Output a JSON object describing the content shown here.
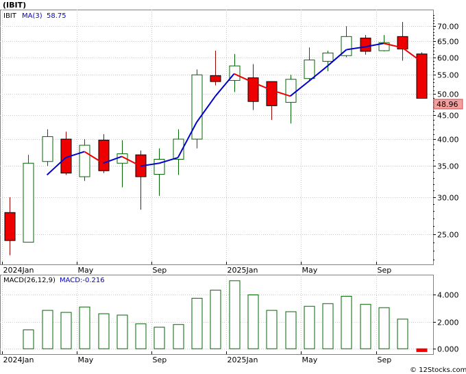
{
  "chart_data": [
    {
      "type": "candlestick",
      "title": "(IBIT)",
      "overlay_label": "MA(3)",
      "overlay_value": "58.75",
      "symbol_tag": "IBIT",
      "last_price_label": "48.96",
      "y_scale": "log",
      "ylim": [
        21.5,
        76
      ],
      "y_ticks": [
        25,
        30,
        35,
        40,
        45,
        50,
        55,
        60,
        65,
        70
      ],
      "y_tick_labels": [
        "25.00",
        "30.00",
        "35.00",
        "40.00",
        "45.00",
        "50.00",
        "55.00",
        "60.00",
        "65.00",
        "70.00"
      ],
      "x_tick_labels": [
        {
          "month": 0,
          "label": "2024Jan"
        },
        {
          "month": 4,
          "label": "May"
        },
        {
          "month": 8,
          "label": "Sep"
        },
        {
          "month": 12,
          "label": "2025Jan"
        },
        {
          "month": 16,
          "label": "May"
        },
        {
          "month": 20,
          "label": "Sep"
        }
      ],
      "months": [
        "2024-01",
        "2024-02",
        "2024-03",
        "2024-04",
        "2024-05",
        "2024-06",
        "2024-07",
        "2024-08",
        "2024-09",
        "2024-10",
        "2024-11",
        "2024-12",
        "2025-01",
        "2025-02",
        "2025-03",
        "2025-04",
        "2025-05",
        "2025-06",
        "2025-07",
        "2025-08",
        "2025-09",
        "2025-10",
        "2025-11"
      ],
      "candles": [
        {
          "o": 27.8,
          "h": 30.0,
          "l": 22.5,
          "c": 24.2
        },
        {
          "o": 24.0,
          "h": 37.0,
          "l": 24.0,
          "c": 35.5
        },
        {
          "o": 35.8,
          "h": 42.0,
          "l": 35.0,
          "c": 40.5
        },
        {
          "o": 40.0,
          "h": 41.5,
          "l": 33.5,
          "c": 33.8
        },
        {
          "o": 33.2,
          "h": 40.0,
          "l": 32.5,
          "c": 38.8
        },
        {
          "o": 39.8,
          "h": 41.0,
          "l": 33.8,
          "c": 34.2
        },
        {
          "o": 35.5,
          "h": 39.8,
          "l": 31.5,
          "c": 37.2
        },
        {
          "o": 37.0,
          "h": 37.8,
          "l": 28.2,
          "c": 33.2
        },
        {
          "o": 33.6,
          "h": 38.2,
          "l": 30.2,
          "c": 36.2
        },
        {
          "o": 36.2,
          "h": 42.0,
          "l": 33.5,
          "c": 40.0
        },
        {
          "o": 40.0,
          "h": 56.5,
          "l": 38.2,
          "c": 55.0
        },
        {
          "o": 54.8,
          "h": 62.0,
          "l": 52.2,
          "c": 53.2
        },
        {
          "o": 53.5,
          "h": 61.0,
          "l": 50.5,
          "c": 57.5
        },
        {
          "o": 54.2,
          "h": 58.0,
          "l": 46.2,
          "c": 48.2
        },
        {
          "o": 53.2,
          "h": 53.2,
          "l": 44.0,
          "c": 47.2
        },
        {
          "o": 48.0,
          "h": 55.0,
          "l": 43.2,
          "c": 53.8
        },
        {
          "o": 54.0,
          "h": 63.0,
          "l": 53.2,
          "c": 59.2
        },
        {
          "o": 58.8,
          "h": 62.0,
          "l": 56.0,
          "c": 61.3
        },
        {
          "o": 60.5,
          "h": 70.0,
          "l": 60.0,
          "c": 66.5
        },
        {
          "o": 66.0,
          "h": 67.0,
          "l": 60.8,
          "c": 61.8
        },
        {
          "o": 62.0,
          "h": 67.0,
          "l": 61.8,
          "c": 64.5
        },
        {
          "o": 66.5,
          "h": 71.5,
          "l": 59.0,
          "c": 62.5
        },
        {
          "o": 61.0,
          "h": 61.5,
          "l": 48.9,
          "c": 48.96
        }
      ],
      "ma": [
        null,
        null,
        33.5,
        36.5,
        37.6,
        35.5,
        36.7,
        35.0,
        35.5,
        36.5,
        43.5,
        49.5,
        55.3,
        53.0,
        51.0,
        49.5,
        53.3,
        57.5,
        62.3,
        63.2,
        64.3,
        62.9,
        58.75
      ],
      "colors": {
        "up_body": "#ffffff",
        "down_body": "#ee0000",
        "candle_outline": "#000000",
        "wick_up": "#006600",
        "wick_down": "#990000",
        "ma_up": "#0000cc",
        "ma_down": "#ee0000",
        "last_label_bg": "#f4a0a0",
        "grid": "#c8c8c8",
        "frame": "#808080"
      }
    },
    {
      "type": "bar",
      "title": "MACD(26,12,9)",
      "value_label": "MACD:-0.216",
      "ylim": [
        -0.4,
        5.5
      ],
      "y_ticks": [
        0,
        2,
        4
      ],
      "y_tick_labels": [
        "0.000",
        "2.000",
        "4.000"
      ],
      "values": [
        null,
        1.4,
        2.85,
        2.7,
        3.1,
        2.6,
        2.5,
        1.85,
        1.6,
        1.8,
        3.75,
        4.35,
        5.05,
        4.0,
        2.85,
        2.75,
        3.15,
        3.35,
        3.9,
        3.3,
        3.05,
        2.2,
        -0.216
      ],
      "colors": {
        "bar_outline": "#006600",
        "bar_fill": "#ffffff",
        "negative_fill": "#ee0000"
      }
    }
  ],
  "footer": {
    "copyright": "© 12Stocks.com"
  }
}
